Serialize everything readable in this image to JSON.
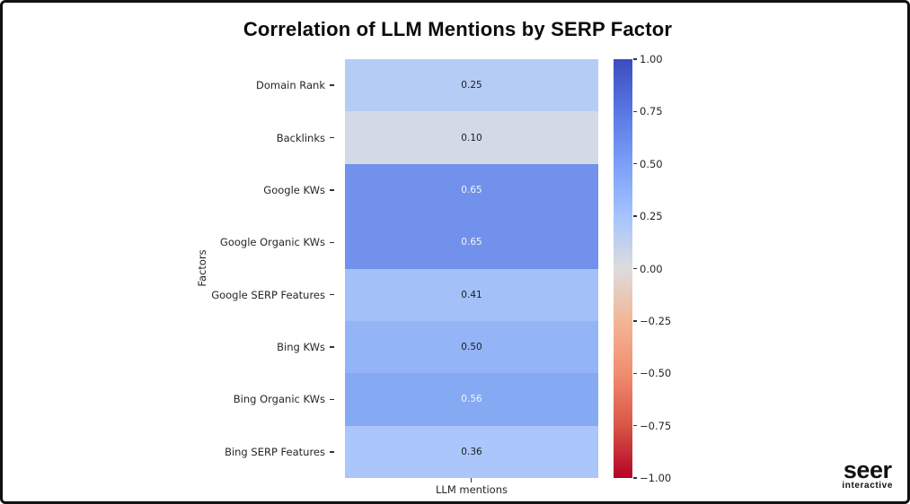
{
  "title": "Correlation of LLM Mentions by SERP Factor",
  "chart_data": {
    "type": "heatmap",
    "title": "Correlation of LLM Mentions by SERP Factor",
    "xlabel": "LLM mentions",
    "ylabel": "Factors",
    "columns": [
      "LLM mentions"
    ],
    "rows": [
      {
        "label": "Domain Rank",
        "value": 0.25,
        "display": "0.25",
        "cell_color": "#b5cdf5",
        "text_color": "#1c1c1c"
      },
      {
        "label": "Backlinks",
        "value": 0.1,
        "display": "0.10",
        "cell_color": "#d2dae8",
        "text_color": "#1c1c1c"
      },
      {
        "label": "Google KWs",
        "value": 0.65,
        "display": "0.65",
        "cell_color": "#7191ec",
        "text_color": "#f5f5f5"
      },
      {
        "label": "Google Organic KWs",
        "value": 0.65,
        "display": "0.65",
        "cell_color": "#7191ec",
        "text_color": "#f5f5f5"
      },
      {
        "label": "Google SERP Features",
        "value": 0.41,
        "display": "0.41",
        "cell_color": "#a3c1f8",
        "text_color": "#1c1c1c"
      },
      {
        "label": "Bing KWs",
        "value": 0.5,
        "display": "0.50",
        "cell_color": "#93b5f7",
        "text_color": "#1c1c1c"
      },
      {
        "label": "Bing Organic KWs",
        "value": 0.56,
        "display": "0.56",
        "cell_color": "#86a9f3",
        "text_color": "#f5f5f5"
      },
      {
        "label": "Bing SERP Features",
        "value": 0.36,
        "display": "0.36",
        "cell_color": "#aac6fa",
        "text_color": "#1c1c1c"
      }
    ],
    "colorbar": {
      "min": -1.0,
      "max": 1.0,
      "colormap": "coolwarm reversed (blue = +1 top, red = -1 bottom)",
      "ticks": [
        "1.00",
        "0.75",
        "0.50",
        "0.25",
        "0.00",
        "−0.25",
        "−0.50",
        "−0.75",
        "−1.00"
      ],
      "gradient_stops": [
        {
          "pos": 0,
          "color": "#3b4cc0"
        },
        {
          "pos": 12.5,
          "color": "#5977e3"
        },
        {
          "pos": 25,
          "color": "#7b9ff9"
        },
        {
          "pos": 37.5,
          "color": "#a5c3fe"
        },
        {
          "pos": 50,
          "color": "#dddcdc"
        },
        {
          "pos": 62.5,
          "color": "#f2b697"
        },
        {
          "pos": 75,
          "color": "#f18d6f"
        },
        {
          "pos": 87.5,
          "color": "#d85646"
        },
        {
          "pos": 100,
          "color": "#b40426"
        }
      ]
    },
    "legend_position": "right colorbar",
    "grid": false
  },
  "logo": {
    "line1": "seer",
    "line2": "interactive"
  }
}
